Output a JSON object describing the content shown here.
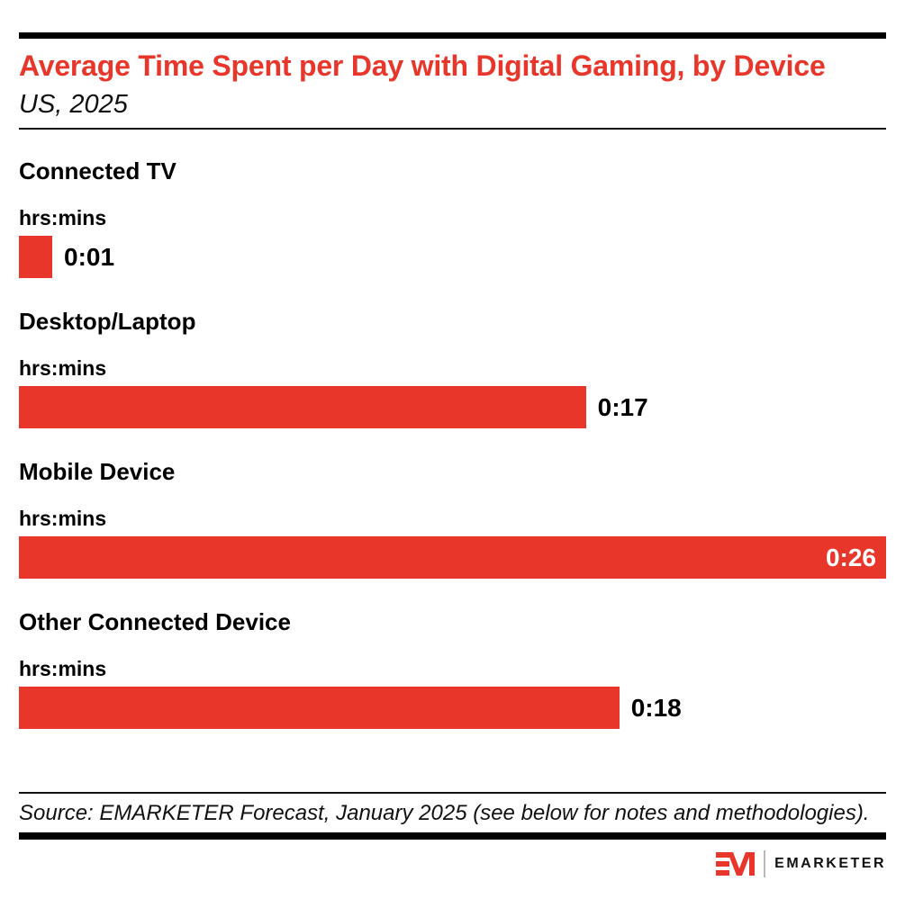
{
  "colors": {
    "accent_red": "#E8362A",
    "bar_red": "#E8362A",
    "rule_black": "#111111",
    "background": "#ffffff",
    "inside_value_text": "#ffffff"
  },
  "header": {
    "title": "Average Time Spent per Day with Digital Gaming, by Device",
    "subtitle": "US, 2025"
  },
  "chart_data": {
    "type": "bar",
    "orientation": "horizontal",
    "title": "Average Time Spent per Day with Digital Gaming, by Device",
    "subtitle": "US, 2025",
    "unit_label": "hrs:mins",
    "categories": [
      "Connected TV",
      "Desktop/Laptop",
      "Mobile Device",
      "Other Connected Device"
    ],
    "values_minutes": [
      1,
      17,
      26,
      18
    ],
    "value_labels": [
      "0:01",
      "0:17",
      "0:26",
      "0:18"
    ],
    "xlim_minutes": [
      0,
      26
    ],
    "bar_color": "#E8362A",
    "grid": false,
    "legend": "none"
  },
  "footer": {
    "source": "Source: EMARKETER Forecast, January 2025 (see below for notes and methodologies).",
    "brand_name": "EMARKETER"
  }
}
